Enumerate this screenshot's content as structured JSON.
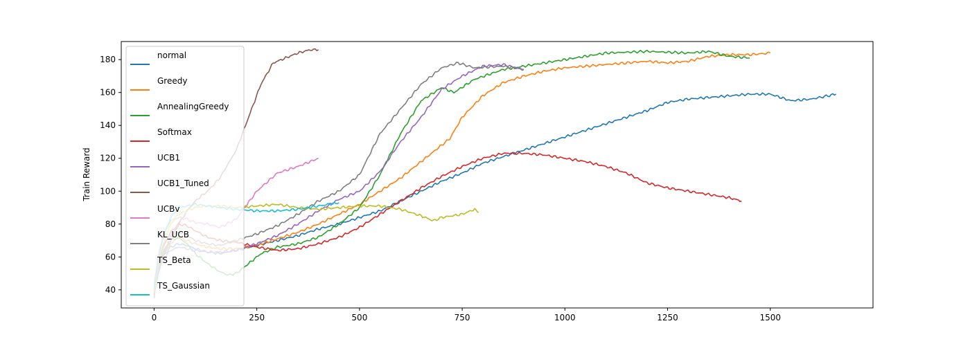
{
  "chart_data": {
    "type": "line",
    "title": "",
    "xlabel": "",
    "ylabel": "Train Reward",
    "xlim": [
      -80,
      1750
    ],
    "ylim": [
      29,
      191
    ],
    "xticks": [
      0,
      250,
      500,
      750,
      1000,
      1250,
      1500
    ],
    "yticks": [
      40,
      60,
      80,
      100,
      120,
      140,
      160,
      180
    ],
    "grid": false,
    "legend_position": "upper-left",
    "series": [
      {
        "name": "normal",
        "color": "#1f77b4",
        "x": [
          0,
          10,
          20,
          40,
          60,
          80,
          100,
          130,
          160,
          200,
          250,
          300,
          350,
          400,
          450,
          500,
          550,
          600,
          650,
          700,
          750,
          800,
          850,
          900,
          950,
          1000,
          1050,
          1100,
          1150,
          1200,
          1250,
          1300,
          1350,
          1400,
          1450,
          1500,
          1550,
          1600,
          1660
        ],
        "y": [
          35,
          52,
          60,
          66,
          68,
          67,
          65,
          63,
          62,
          64,
          67,
          70,
          73,
          77,
          80,
          84,
          88,
          94,
          100,
          106,
          111,
          117,
          121,
          125,
          129,
          133,
          137,
          141,
          145,
          149,
          154,
          156,
          157,
          158,
          159,
          159,
          155,
          156,
          159
        ]
      },
      {
        "name": "Greedy",
        "color": "#ff7f0e",
        "x": [
          0,
          10,
          20,
          40,
          60,
          80,
          100,
          130,
          160,
          200,
          250,
          300,
          350,
          400,
          450,
          500,
          550,
          600,
          650,
          700,
          720,
          750,
          800,
          850,
          900,
          950,
          1000,
          1100,
          1200,
          1250,
          1300,
          1350,
          1400,
          1450,
          1500
        ],
        "y": [
          36,
          50,
          60,
          68,
          72,
          70,
          68,
          66,
          65,
          65,
          67,
          71,
          75,
          80,
          86,
          92,
          100,
          108,
          118,
          128,
          132,
          145,
          158,
          166,
          170,
          173,
          175,
          177,
          179,
          178,
          179,
          182,
          183,
          183,
          184
        ]
      },
      {
        "name": "AnnealingGreedy",
        "color": "#2ca02c",
        "x": [
          0,
          10,
          20,
          40,
          60,
          80,
          100,
          130,
          160,
          180,
          200,
          230,
          260,
          300,
          350,
          400,
          450,
          500,
          550,
          600,
          650,
          700,
          730,
          780,
          850,
          900,
          950,
          1000,
          1050,
          1100,
          1200,
          1300,
          1350,
          1400,
          1450
        ],
        "y": [
          38,
          52,
          62,
          70,
          72,
          68,
          62,
          56,
          51,
          49,
          50,
          56,
          62,
          66,
          68,
          72,
          80,
          90,
          110,
          135,
          155,
          163,
          160,
          168,
          174,
          176,
          178,
          180,
          182,
          184,
          185,
          184,
          185,
          182,
          181
        ]
      },
      {
        "name": "Softmax",
        "color": "#d62728",
        "x": [
          0,
          10,
          20,
          40,
          60,
          80,
          100,
          130,
          160,
          200,
          250,
          300,
          350,
          400,
          450,
          500,
          550,
          600,
          650,
          700,
          750,
          800,
          850,
          900,
          950,
          1000,
          1050,
          1100,
          1150,
          1200,
          1250,
          1300,
          1350,
          1400,
          1430
        ],
        "y": [
          40,
          55,
          65,
          75,
          80,
          79,
          76,
          72,
          70,
          69,
          66,
          64,
          65,
          68,
          72,
          78,
          86,
          94,
          102,
          109,
          115,
          120,
          123,
          123,
          122,
          120,
          118,
          115,
          111,
          105,
          102,
          100,
          98,
          96,
          94
        ]
      },
      {
        "name": "UCB1",
        "color": "#9467bd",
        "x": [
          0,
          10,
          20,
          40,
          60,
          80,
          100,
          130,
          160,
          200,
          250,
          300,
          350,
          400,
          450,
          500,
          550,
          600,
          650,
          700,
          750,
          800,
          850,
          900
        ],
        "y": [
          37,
          50,
          58,
          64,
          66,
          65,
          64,
          63,
          63,
          64,
          68,
          73,
          80,
          88,
          95,
          100,
          112,
          130,
          145,
          162,
          170,
          176,
          177,
          174
        ]
      },
      {
        "name": "UCB1_Tuned",
        "color": "#8c564b",
        "x": [
          0,
          10,
          20,
          40,
          60,
          80,
          100,
          130,
          160,
          200,
          230,
          260,
          290,
          320,
          350,
          380,
          400
        ],
        "y": [
          42,
          52,
          60,
          70,
          80,
          88,
          94,
          100,
          108,
          125,
          145,
          165,
          178,
          181,
          184,
          186,
          186
        ]
      },
      {
        "name": "UCBv",
        "color": "#e377c2",
        "x": [
          0,
          10,
          20,
          40,
          60,
          80,
          100,
          130,
          160,
          200,
          250,
          300,
          350,
          400
        ],
        "y": [
          44,
          60,
          72,
          82,
          84,
          83,
          81,
          80,
          78,
          83,
          100,
          111,
          115,
          120
        ]
      },
      {
        "name": "KL_UCB",
        "color": "#7f7f7f",
        "x": [
          0,
          10,
          20,
          40,
          60,
          80,
          100,
          130,
          160,
          200,
          250,
          300,
          350,
          400,
          450,
          500,
          550,
          600,
          650,
          700,
          740,
          780,
          850,
          900
        ],
        "y": [
          38,
          52,
          62,
          72,
          75,
          73,
          70,
          68,
          67,
          70,
          74,
          79,
          86,
          94,
          100,
          110,
          135,
          150,
          165,
          175,
          178,
          175,
          176,
          174
        ]
      },
      {
        "name": "TS_Beta",
        "color": "#bcbd22",
        "x": [
          0,
          10,
          20,
          40,
          60,
          80,
          100,
          130,
          160,
          200,
          250,
          300,
          350,
          400,
          450,
          500,
          550,
          600,
          650,
          680,
          700,
          750,
          780,
          790
        ],
        "y": [
          38,
          55,
          66,
          80,
          86,
          88,
          90,
          91,
          91,
          90,
          91,
          92,
          90,
          89,
          90,
          91,
          91,
          89,
          85,
          82,
          84,
          86,
          89,
          87
        ]
      },
      {
        "name": "TS_Gaussian",
        "color": "#17becf",
        "x": [
          0,
          10,
          20,
          40,
          60,
          80,
          100,
          130,
          160,
          200,
          250,
          300,
          350,
          400,
          450
        ],
        "y": [
          41,
          58,
          70,
          84,
          90,
          91,
          92,
          91,
          90,
          89,
          88,
          88,
          89,
          91,
          93
        ]
      }
    ]
  }
}
